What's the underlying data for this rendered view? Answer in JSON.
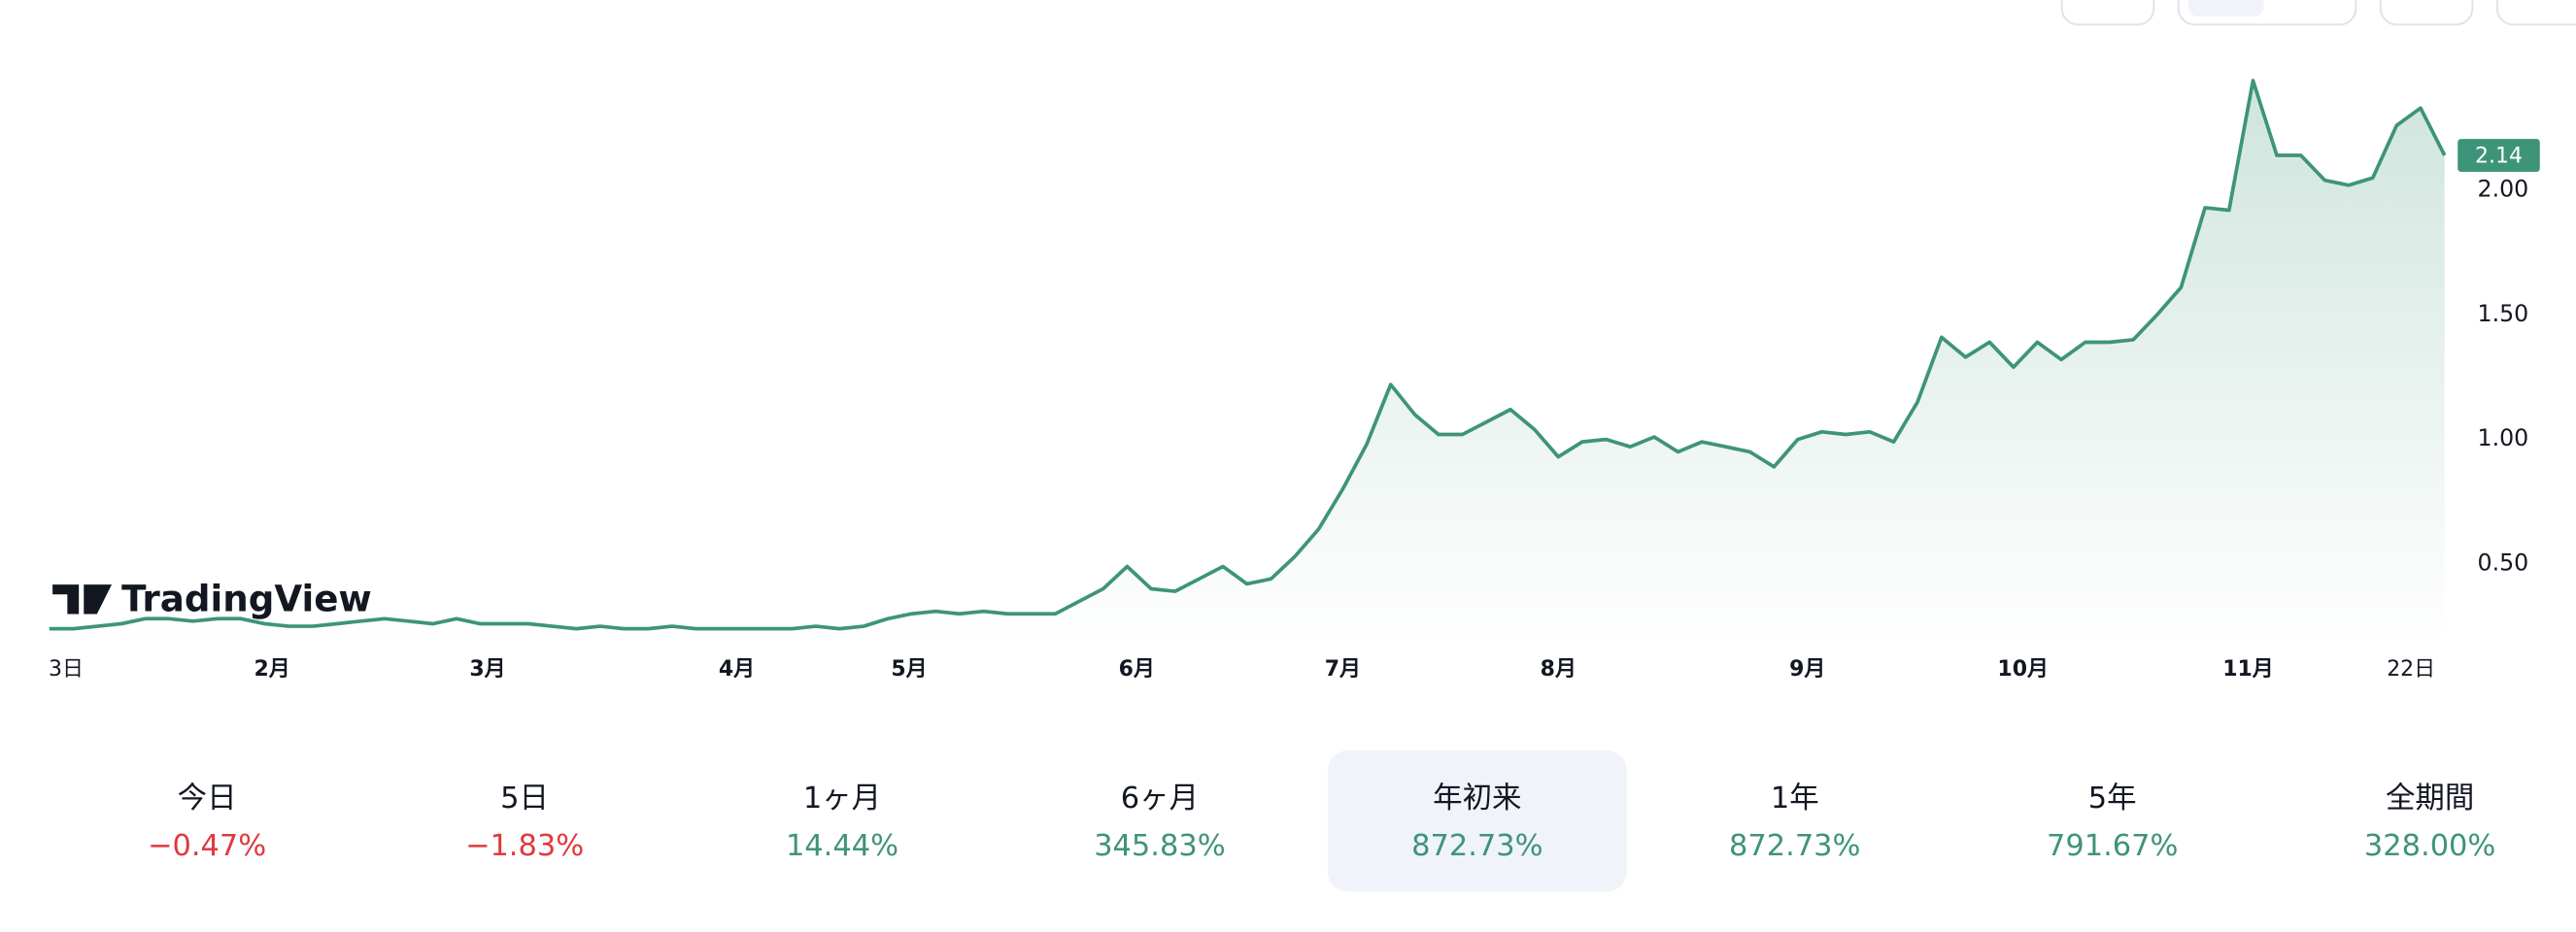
{
  "chart_data": {
    "type": "line",
    "color": "#3e9479",
    "values": [
      0.24,
      0.24,
      0.25,
      0.26,
      0.28,
      0.28,
      0.27,
      0.28,
      0.28,
      0.26,
      0.25,
      0.25,
      0.26,
      0.27,
      0.28,
      0.27,
      0.26,
      0.28,
      0.26,
      0.26,
      0.26,
      0.25,
      0.24,
      0.25,
      0.24,
      0.24,
      0.25,
      0.24,
      0.24,
      0.24,
      0.24,
      0.24,
      0.25,
      0.24,
      0.25,
      0.28,
      0.3,
      0.31,
      0.3,
      0.31,
      0.3,
      0.3,
      0.3,
      0.35,
      0.4,
      0.49,
      0.4,
      0.39,
      0.44,
      0.49,
      0.42,
      0.44,
      0.53,
      0.64,
      0.8,
      0.98,
      1.22,
      1.1,
      1.02,
      1.02,
      1.07,
      1.12,
      1.04,
      0.93,
      0.99,
      1.0,
      0.97,
      1.01,
      0.95,
      0.99,
      0.97,
      0.95,
      0.89,
      1.0,
      1.03,
      1.02,
      1.03,
      0.99,
      1.15,
      1.41,
      1.33,
      1.39,
      1.29,
      1.39,
      1.32,
      1.39,
      1.39,
      1.4,
      1.5,
      1.61,
      1.93,
      1.92,
      2.44,
      2.14,
      2.14,
      2.04,
      2.02,
      2.05,
      2.26,
      2.33,
      2.14
    ],
    "xlim": [
      0,
      100
    ],
    "xticks": [
      {
        "value": 0.7,
        "label": "3日"
      },
      {
        "value": 9.3,
        "label": "2月"
      },
      {
        "value": 18.3,
        "label": "3月"
      },
      {
        "value": 28.7,
        "label": "4月"
      },
      {
        "value": 35.9,
        "label": "5月"
      },
      {
        "value": 45.4,
        "label": "6月"
      },
      {
        "value": 54,
        "label": "7月"
      },
      {
        "value": 63,
        "label": "8月"
      },
      {
        "value": 73.4,
        "label": "9月"
      },
      {
        "value": 82.4,
        "label": "10月"
      },
      {
        "value": 91.8,
        "label": "11月"
      },
      {
        "value": 98.6,
        "label": "22日"
      }
    ],
    "ylim": [
      0.18,
      2.5
    ],
    "yticks": [
      {
        "value": 0.5,
        "label": "0.50"
      },
      {
        "value": 1.0,
        "label": "1.00"
      },
      {
        "value": 1.5,
        "label": "1.50"
      },
      {
        "value": 2.0,
        "label": "2.00"
      }
    ],
    "grid": false
  },
  "logo": "TradingView",
  "periods": [
    {
      "label": "今日",
      "value": "−0.47%",
      "direction": "down"
    },
    {
      "label": "5日",
      "value": "−1.83%",
      "direction": "down"
    },
    {
      "label": "1ヶ月",
      "value": "14.44%",
      "direction": "up"
    },
    {
      "label": "6ヶ月",
      "value": "345.83%",
      "direction": "up"
    },
    {
      "label": "年初来",
      "value": "872.73%",
      "direction": "up"
    },
    {
      "label": "1年",
      "value": "872.73%",
      "direction": "up"
    },
    {
      "label": "5年",
      "value": "791.67%",
      "direction": "up"
    },
    {
      "label": "全期間",
      "value": "328.00%",
      "direction": "up"
    }
  ],
  "selected_period": 4
}
